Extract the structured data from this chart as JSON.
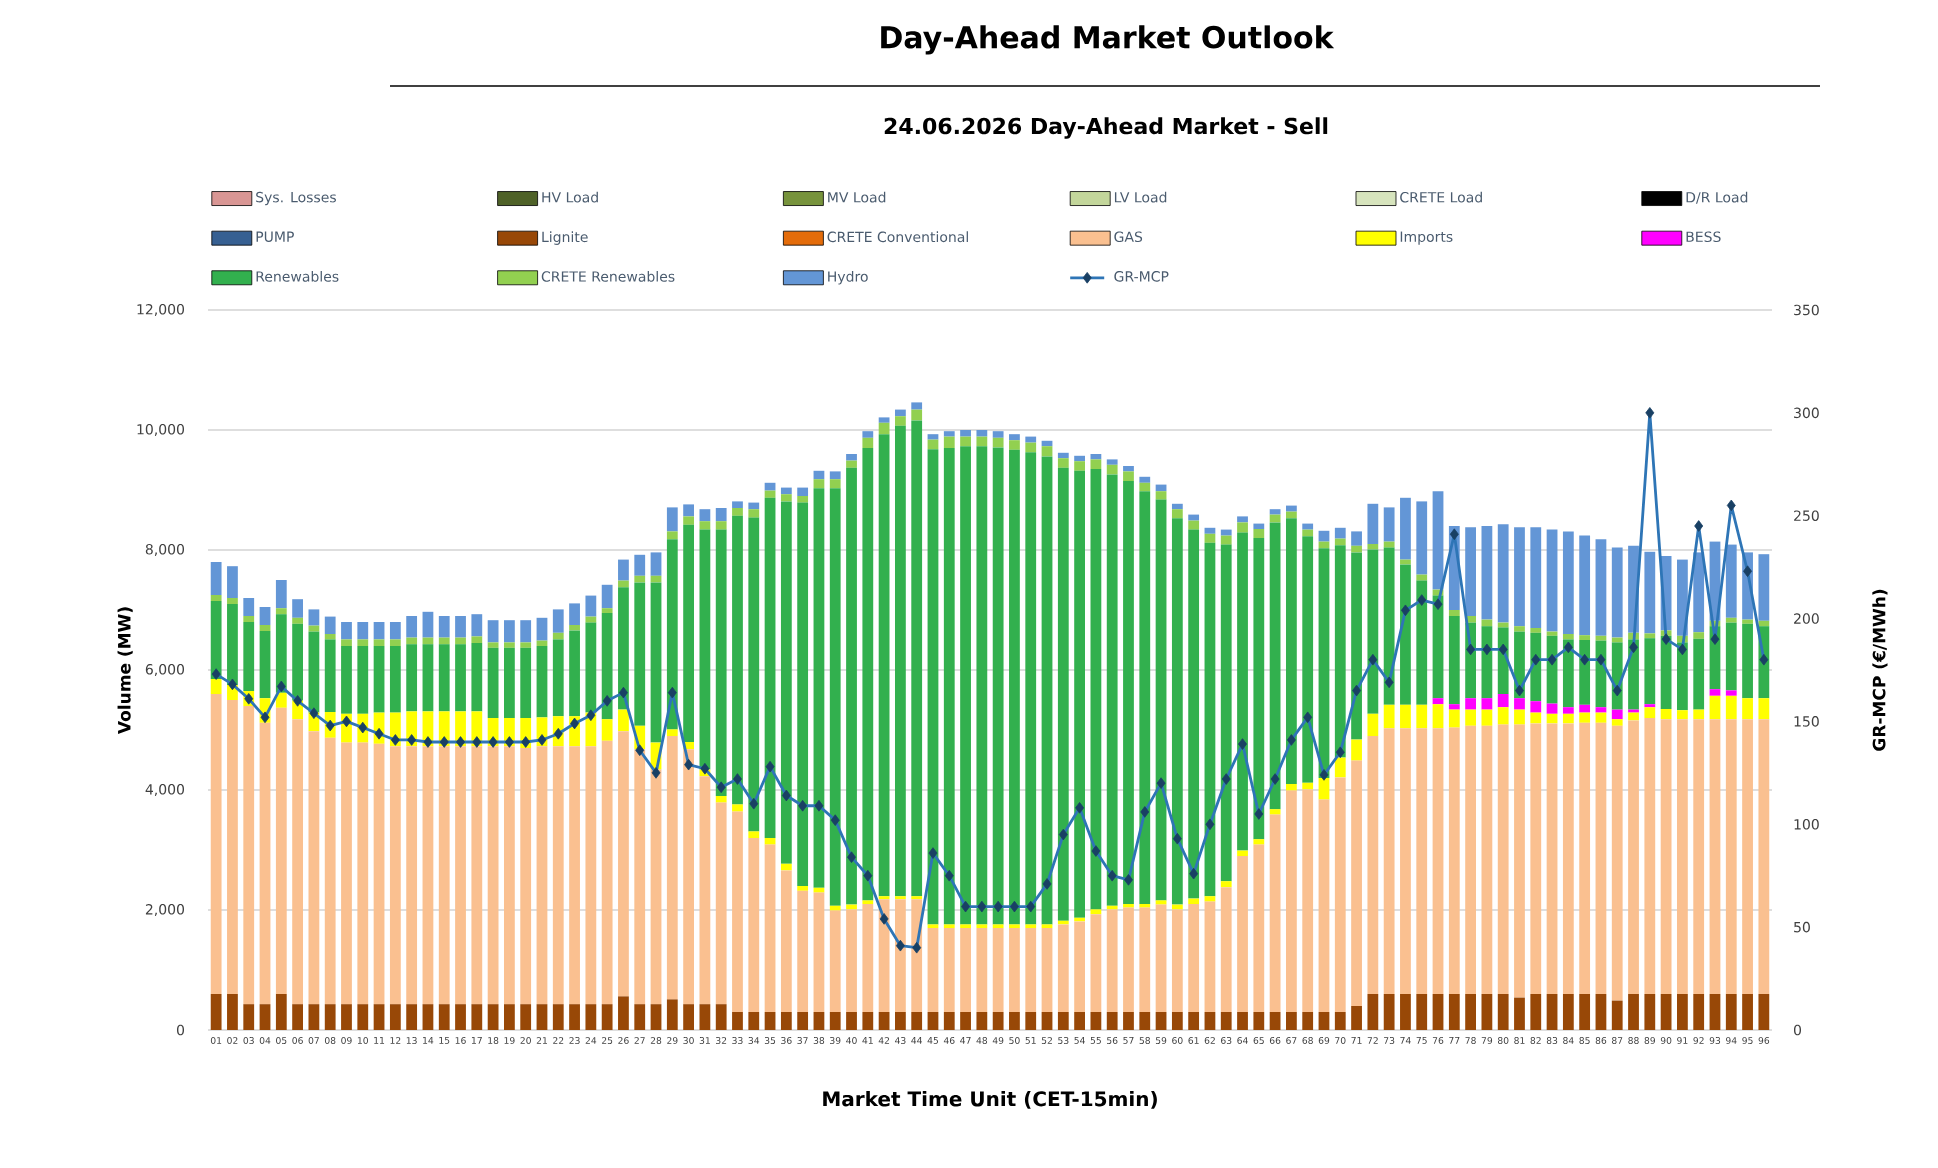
{
  "chart_data": {
    "type": "bar",
    "title": "Day-Ahead Market Outlook",
    "subtitle": "24.06.2026 Day-Ahead Market - Sell",
    "xlabel": "Market Time Unit (CET-15min)",
    "ylabel": "Volume (MW)",
    "y2label": "GR-MCP (€/MWh)",
    "categories": [
      "01",
      "02",
      "03",
      "04",
      "05",
      "06",
      "07",
      "08",
      "09",
      "10",
      "11",
      "12",
      "13",
      "14",
      "15",
      "16",
      "17",
      "18",
      "19",
      "20",
      "21",
      "22",
      "23",
      "24",
      "25",
      "26",
      "27",
      "28",
      "29",
      "30",
      "31",
      "32",
      "33",
      "34",
      "35",
      "36",
      "37",
      "38",
      "39",
      "40",
      "41",
      "42",
      "43",
      "44",
      "45",
      "46",
      "47",
      "48",
      "49",
      "50",
      "51",
      "52",
      "53",
      "54",
      "55",
      "56",
      "57",
      "58",
      "59",
      "60",
      "61",
      "62",
      "63",
      "64",
      "65",
      "66",
      "67",
      "68",
      "69",
      "70",
      "71",
      "72",
      "73",
      "74",
      "75",
      "76",
      "77",
      "78",
      "79",
      "80",
      "81",
      "82",
      "83",
      "84",
      "85",
      "86",
      "87",
      "88",
      "89",
      "90",
      "91",
      "92",
      "93",
      "94",
      "95",
      "96"
    ],
    "stacked": true,
    "grid": "y",
    "legend": "top",
    "ylim": [
      0,
      12000
    ],
    "yticks": [
      0,
      {
        "value": 2000,
        "label": "2,000"
      },
      {
        "value": 4000,
        "label": "4,000"
      },
      {
        "value": 6000,
        "label": "6,000"
      },
      {
        "value": 8000,
        "label": "8,000"
      },
      {
        "value": 10000,
        "label": "10,000"
      },
      {
        "value": 12000,
        "label": "12,000"
      }
    ],
    "y2lim": [
      0,
      350
    ],
    "y2ticks": [
      0,
      50,
      100,
      150,
      200,
      250,
      300,
      350
    ],
    "series": [
      {
        "name": "Sys. Losses",
        "color": "#d99694",
        "values": [
          0,
          0,
          0,
          0,
          0,
          0,
          0,
          0,
          0,
          0,
          0,
          0,
          0,
          0,
          0,
          0,
          0,
          0,
          0,
          0,
          0,
          0,
          0,
          0,
          0,
          0,
          0,
          0,
          0,
          0,
          0,
          0,
          0,
          0,
          0,
          0,
          0,
          0,
          0,
          0,
          0,
          0,
          0,
          0,
          0,
          0,
          0,
          0,
          0,
          0,
          0,
          0,
          0,
          0,
          0,
          0,
          0,
          0,
          0,
          0,
          0,
          0,
          0,
          0,
          0,
          0,
          0,
          0,
          0,
          0,
          0,
          0,
          0,
          0,
          0,
          0,
          0,
          0,
          0,
          0,
          0,
          0,
          0,
          0,
          0,
          0,
          0,
          0,
          0,
          0,
          0,
          0,
          0,
          0,
          0,
          0
        ]
      },
      {
        "name": "HV Load",
        "color": "#4f6228",
        "values": [
          0,
          0,
          0,
          0,
          0,
          0,
          0,
          0,
          0,
          0,
          0,
          0,
          0,
          0,
          0,
          0,
          0,
          0,
          0,
          0,
          0,
          0,
          0,
          0,
          0,
          0,
          0,
          0,
          0,
          0,
          0,
          0,
          0,
          0,
          0,
          0,
          0,
          0,
          0,
          0,
          0,
          0,
          0,
          0,
          0,
          0,
          0,
          0,
          0,
          0,
          0,
          0,
          0,
          0,
          0,
          0,
          0,
          0,
          0,
          0,
          0,
          0,
          0,
          0,
          0,
          0,
          0,
          0,
          0,
          0,
          0,
          0,
          0,
          0,
          0,
          0,
          0,
          0,
          0,
          0,
          0,
          0,
          0,
          0,
          0,
          0,
          0,
          0,
          0,
          0,
          0,
          0,
          0,
          0,
          0,
          0
        ]
      },
      {
        "name": "MV Load",
        "color": "#77933c",
        "values": [
          0,
          0,
          0,
          0,
          0,
          0,
          0,
          0,
          0,
          0,
          0,
          0,
          0,
          0,
          0,
          0,
          0,
          0,
          0,
          0,
          0,
          0,
          0,
          0,
          0,
          0,
          0,
          0,
          0,
          0,
          0,
          0,
          0,
          0,
          0,
          0,
          0,
          0,
          0,
          0,
          0,
          0,
          0,
          0,
          0,
          0,
          0,
          0,
          0,
          0,
          0,
          0,
          0,
          0,
          0,
          0,
          0,
          0,
          0,
          0,
          0,
          0,
          0,
          0,
          0,
          0,
          0,
          0,
          0,
          0,
          0,
          0,
          0,
          0,
          0,
          0,
          0,
          0,
          0,
          0,
          0,
          0,
          0,
          0,
          0,
          0,
          0,
          0,
          0,
          0,
          0,
          0,
          0,
          0,
          0,
          0
        ]
      },
      {
        "name": "LV Load",
        "color": "#c3d69b",
        "values": [
          0,
          0,
          0,
          0,
          0,
          0,
          0,
          0,
          0,
          0,
          0,
          0,
          0,
          0,
          0,
          0,
          0,
          0,
          0,
          0,
          0,
          0,
          0,
          0,
          0,
          0,
          0,
          0,
          0,
          0,
          0,
          0,
          0,
          0,
          0,
          0,
          0,
          0,
          0,
          0,
          0,
          0,
          0,
          0,
          0,
          0,
          0,
          0,
          0,
          0,
          0,
          0,
          0,
          0,
          0,
          0,
          0,
          0,
          0,
          0,
          0,
          0,
          0,
          0,
          0,
          0,
          0,
          0,
          0,
          0,
          0,
          0,
          0,
          0,
          0,
          0,
          0,
          0,
          0,
          0,
          0,
          0,
          0,
          0,
          0,
          0,
          0,
          0,
          0,
          0,
          0,
          0,
          0,
          0,
          0,
          0
        ]
      },
      {
        "name": "CRETE Load",
        "color": "#d7e4bd",
        "values": [
          0,
          0,
          0,
          0,
          0,
          0,
          0,
          0,
          0,
          0,
          0,
          0,
          0,
          0,
          0,
          0,
          0,
          0,
          0,
          0,
          0,
          0,
          0,
          0,
          0,
          0,
          0,
          0,
          0,
          0,
          0,
          0,
          0,
          0,
          0,
          0,
          0,
          0,
          0,
          0,
          0,
          0,
          0,
          0,
          0,
          0,
          0,
          0,
          0,
          0,
          0,
          0,
          0,
          0,
          0,
          0,
          0,
          0,
          0,
          0,
          0,
          0,
          0,
          0,
          0,
          0,
          0,
          0,
          0,
          0,
          0,
          0,
          0,
          0,
          0,
          0,
          0,
          0,
          0,
          0,
          0,
          0,
          0,
          0,
          0,
          0,
          0,
          0,
          0,
          0,
          0,
          0,
          0,
          0,
          0,
          0
        ]
      },
      {
        "name": "D/R Load",
        "color": "#000000",
        "values": [
          0,
          0,
          0,
          0,
          0,
          0,
          0,
          0,
          0,
          0,
          0,
          0,
          0,
          0,
          0,
          0,
          0,
          0,
          0,
          0,
          0,
          0,
          0,
          0,
          0,
          0,
          0,
          0,
          0,
          0,
          0,
          0,
          0,
          0,
          0,
          0,
          0,
          0,
          0,
          0,
          0,
          0,
          0,
          0,
          0,
          0,
          0,
          0,
          0,
          0,
          0,
          0,
          0,
          0,
          0,
          0,
          0,
          0,
          0,
          0,
          0,
          0,
          0,
          0,
          0,
          0,
          0,
          0,
          0,
          0,
          0,
          0,
          0,
          0,
          0,
          0,
          0,
          0,
          0,
          0,
          0,
          0,
          0,
          0,
          0,
          0,
          0,
          0,
          0,
          0,
          0,
          0,
          0,
          0,
          0,
          0
        ]
      },
      {
        "name": "PUMP",
        "color": "#376092",
        "values": [
          0,
          0,
          0,
          0,
          0,
          0,
          0,
          0,
          0,
          0,
          0,
          0,
          0,
          0,
          0,
          0,
          0,
          0,
          0,
          0,
          0,
          0,
          0,
          0,
          0,
          0,
          0,
          0,
          0,
          0,
          0,
          0,
          0,
          0,
          0,
          0,
          0,
          0,
          0,
          0,
          0,
          0,
          0,
          0,
          0,
          0,
          0,
          0,
          0,
          0,
          0,
          0,
          0,
          0,
          0,
          0,
          0,
          0,
          0,
          0,
          0,
          0,
          0,
          0,
          0,
          0,
          0,
          0,
          0,
          0,
          0,
          0,
          0,
          0,
          0,
          0,
          0,
          0,
          0,
          0,
          0,
          0,
          0,
          0,
          0,
          0,
          0,
          0,
          0,
          0,
          0,
          0,
          0,
          0,
          0,
          0
        ]
      },
      {
        "name": "Lignite",
        "color": "#984807",
        "values": [
          600,
          600,
          430,
          430,
          600,
          430,
          430,
          430,
          430,
          430,
          430,
          430,
          430,
          430,
          430,
          430,
          430,
          430,
          430,
          430,
          430,
          430,
          430,
          430,
          430,
          560,
          430,
          430,
          510,
          430,
          430,
          430,
          300,
          300,
          300,
          300,
          300,
          300,
          300,
          300,
          300,
          300,
          300,
          300,
          300,
          300,
          300,
          300,
          300,
          300,
          300,
          300,
          300,
          300,
          300,
          300,
          300,
          300,
          300,
          300,
          300,
          300,
          300,
          300,
          300,
          300,
          300,
          300,
          300,
          300,
          400,
          600,
          600,
          600,
          600,
          600,
          600,
          600,
          600,
          600,
          540,
          600,
          600,
          600,
          600,
          600,
          490,
          600,
          600,
          600,
          600,
          600,
          600,
          600,
          600,
          600
        ]
      },
      {
        "name": "CRETE Conventional",
        "color": "#e46c0a",
        "values": [
          0,
          0,
          0,
          0,
          0,
          0,
          0,
          0,
          0,
          0,
          0,
          0,
          0,
          0,
          0,
          0,
          0,
          0,
          0,
          0,
          0,
          0,
          0,
          0,
          0,
          0,
          0,
          0,
          0,
          0,
          0,
          0,
          0,
          0,
          0,
          0,
          0,
          0,
          0,
          0,
          0,
          0,
          0,
          0,
          0,
          0,
          0,
          0,
          0,
          0,
          0,
          0,
          0,
          0,
          0,
          0,
          0,
          0,
          0,
          0,
          0,
          0,
          0,
          0,
          0,
          0,
          0,
          0,
          0,
          0,
          0,
          0,
          0,
          0,
          0,
          0,
          0,
          0,
          0,
          0,
          0,
          0,
          0,
          0,
          0,
          0,
          0,
          0,
          0,
          0,
          0,
          0,
          0,
          0,
          0,
          0
        ]
      },
      {
        "name": "GAS",
        "color": "#fac090",
        "values": [
          5000,
          4900,
          4970,
          4690,
          4770,
          4750,
          4550,
          4440,
          4360,
          4360,
          4340,
          4300,
          4300,
          4300,
          4300,
          4300,
          4300,
          4300,
          4300,
          4270,
          4300,
          4300,
          4300,
          4300,
          4390,
          4420,
          4250,
          3910,
          4390,
          4250,
          3800,
          3360,
          3340,
          2900,
          2790,
          2360,
          2020,
          1990,
          1690,
          1710,
          1800,
          1880,
          1880,
          1880,
          1400,
          1400,
          1400,
          1400,
          1400,
          1400,
          1400,
          1400,
          1460,
          1510,
          1630,
          1710,
          1740,
          1740,
          1790,
          1710,
          1800,
          1840,
          2080,
          2600,
          2790,
          3290,
          3690,
          3710,
          3540,
          3910,
          4090,
          4300,
          4430,
          4430,
          4430,
          4430,
          4440,
          4470,
          4470,
          4490,
          4550,
          4510,
          4510,
          4510,
          4520,
          4520,
          4580,
          4560,
          4600,
          4580,
          4580,
          4580,
          4580,
          4580,
          4580,
          4580
        ]
      },
      {
        "name": "Imports",
        "color": "#ffff00",
        "values": [
          250,
          250,
          250,
          410,
          250,
          310,
          310,
          430,
          480,
          480,
          520,
          560,
          580,
          580,
          580,
          580,
          580,
          470,
          470,
          500,
          480,
          500,
          500,
          560,
          360,
          360,
          390,
          450,
          110,
          120,
          110,
          110,
          120,
          110,
          110,
          110,
          80,
          80,
          80,
          80,
          60,
          50,
          50,
          50,
          60,
          60,
          60,
          60,
          60,
          60,
          60,
          60,
          60,
          60,
          80,
          60,
          60,
          60,
          70,
          80,
          90,
          90,
          100,
          90,
          90,
          90,
          110,
          110,
          360,
          330,
          350,
          370,
          390,
          390,
          390,
          400,
          300,
          270,
          270,
          290,
          250,
          180,
          160,
          160,
          170,
          170,
          110,
          130,
          180,
          170,
          150,
          160,
          390,
          390,
          350,
          350
        ]
      },
      {
        "name": "BESS",
        "color": "#ff00ff",
        "values": [
          0,
          0,
          0,
          0,
          0,
          0,
          0,
          0,
          0,
          0,
          0,
          0,
          0,
          0,
          0,
          0,
          0,
          0,
          0,
          0,
          0,
          0,
          0,
          0,
          0,
          0,
          0,
          0,
          0,
          0,
          0,
          0,
          0,
          0,
          0,
          0,
          0,
          0,
          0,
          0,
          0,
          0,
          0,
          0,
          0,
          0,
          0,
          0,
          0,
          0,
          0,
          0,
          0,
          0,
          0,
          0,
          0,
          0,
          0,
          0,
          0,
          0,
          0,
          0,
          0,
          0,
          0,
          0,
          0,
          0,
          0,
          0,
          0,
          0,
          0,
          100,
          90,
          190,
          190,
          220,
          190,
          190,
          170,
          110,
          130,
          90,
          160,
          50,
          50,
          0,
          0,
          0,
          110,
          90,
          0,
          0
        ]
      },
      {
        "name": "Renewables",
        "color": "#32b04e",
        "values": [
          1300,
          1350,
          1150,
          1120,
          1310,
          1280,
          1350,
          1210,
          1130,
          1130,
          1110,
          1110,
          1120,
          1120,
          1120,
          1120,
          1140,
          1170,
          1170,
          1170,
          1190,
          1280,
          1430,
          1500,
          1770,
          2040,
          2390,
          2670,
          3170,
          3620,
          4000,
          4440,
          4810,
          5230,
          5670,
          6040,
          6390,
          6660,
          6960,
          7280,
          7540,
          7700,
          7840,
          7930,
          7920,
          7940,
          7970,
          7970,
          7950,
          7910,
          7870,
          7800,
          7550,
          7450,
          7340,
          7190,
          7050,
          6880,
          6680,
          6440,
          6150,
          5890,
          5610,
          5300,
          5020,
          4780,
          4430,
          4110,
          3830,
          3540,
          3120,
          2740,
          2620,
          2340,
          2070,
          1710,
          1470,
          1260,
          1200,
          1110,
          1110,
          1140,
          1130,
          1130,
          1080,
          1110,
          1120,
          1170,
          1100,
          1220,
          1130,
          1180,
          1050,
          1130,
          1240,
          1200
        ]
      },
      {
        "name": "CRETE Renewables",
        "color": "#92d050",
        "values": [
          100,
          100,
          100,
          100,
          100,
          100,
          100,
          90,
          110,
          110,
          110,
          110,
          110,
          110,
          110,
          110,
          110,
          90,
          90,
          90,
          90,
          110,
          90,
          100,
          80,
          110,
          110,
          110,
          130,
          140,
          140,
          140,
          130,
          140,
          120,
          120,
          110,
          150,
          150,
          120,
          170,
          190,
          160,
          180,
          160,
          190,
          160,
          160,
          160,
          160,
          160,
          170,
          160,
          160,
          160,
          160,
          160,
          140,
          140,
          150,
          150,
          150,
          150,
          170,
          150,
          130,
          110,
          110,
          110,
          110,
          110,
          90,
          100,
          80,
          100,
          100,
          100,
          110,
          110,
          80,
          90,
          80,
          70,
          90,
          80,
          80,
          80,
          110,
          80,
          90,
          110,
          110,
          90,
          80,
          70,
          90
        ]
      },
      {
        "name": "Hydro",
        "color": "#6396d6",
        "values": [
          550,
          530,
          300,
          300,
          470,
          310,
          270,
          290,
          290,
          290,
          290,
          290,
          360,
          430,
          360,
          360,
          370,
          370,
          370,
          370,
          380,
          390,
          360,
          350,
          390,
          350,
          350,
          390,
          400,
          200,
          200,
          220,
          110,
          110,
          130,
          110,
          140,
          140,
          130,
          110,
          110,
          90,
          110,
          120,
          90,
          90,
          110,
          110,
          110,
          100,
          100,
          90,
          90,
          90,
          90,
          90,
          90,
          100,
          110,
          90,
          100,
          100,
          100,
          100,
          90,
          90,
          100,
          100,
          180,
          180,
          240,
          670,
          570,
          1030,
          1220,
          1640,
          1400,
          1480,
          1560,
          1640,
          1650,
          1680,
          1700,
          1710,
          1660,
          1610,
          1500,
          1450,
          1360,
          1240,
          1270,
          1330,
          1320,
          1220,
          1120,
          1110
        ]
      },
      {
        "name": "GR-MCP",
        "type": "line",
        "axis": "y2",
        "color": "#2e75b6",
        "marker": "diamond",
        "values": [
          173,
          168,
          161,
          152,
          167,
          160,
          154,
          148,
          150,
          147,
          144,
          141,
          141,
          140,
          140,
          140,
          140,
          140,
          140,
          140,
          141,
          144,
          149,
          153,
          160,
          164,
          136,
          125,
          164,
          129,
          127,
          118,
          122,
          110,
          128,
          114,
          109,
          109,
          102,
          84,
          75,
          54,
          41,
          40,
          86,
          75,
          60,
          60,
          60,
          60,
          60,
          71,
          95,
          108,
          87,
          75,
          73,
          106,
          120,
          93,
          76,
          100,
          122,
          139,
          105,
          122,
          141,
          152,
          124,
          135,
          165,
          180,
          169,
          204,
          209,
          207,
          241,
          185,
          185,
          185,
          165,
          180,
          180,
          186,
          180,
          180,
          165,
          186,
          300,
          190,
          185,
          245,
          190,
          255,
          223,
          180
        ]
      }
    ]
  }
}
